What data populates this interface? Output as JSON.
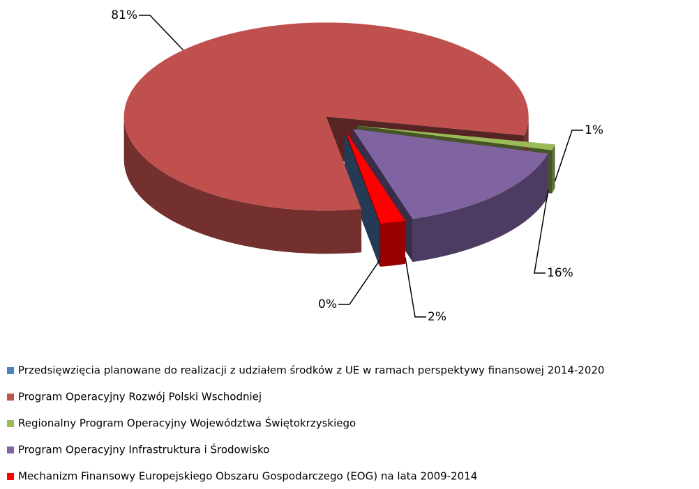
{
  "chart_data": {
    "type": "pie3d",
    "categories": [
      "Przedsięwzięcia planowane do realizacji z udziałem środków z UE  w ramach perspektywy finansowej 2014-2020",
      "Program Operacyjny Rozwój Polski Wschodniej",
      "Regionalny Program Operacyjny Województwa Świętokrzyskiego",
      "Program Operacyjny Infrastruktura i Środowisko",
      "Mechanizm Finansowy Europejskiego Obszaru Gospodarczego (EOG) na lata 2009-2014"
    ],
    "values": [
      0,
      81,
      1,
      16,
      2
    ],
    "value_labels": [
      "0%",
      "81%",
      "1%",
      "16%",
      "2%"
    ],
    "colors": [
      "#4f81bd",
      "#c0504d",
      "#9bbb59",
      "#8064a2",
      "#ff0000"
    ],
    "legend": "bottom"
  }
}
